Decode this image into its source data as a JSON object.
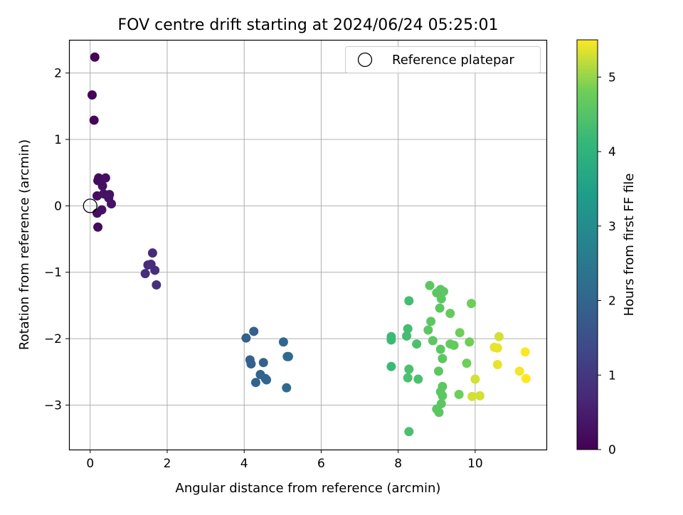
{
  "chart_data": {
    "type": "scatter",
    "title": "FOV centre drift starting at 2024/06/24 05:25:01",
    "xlabel": "Angular distance from reference (arcmin)",
    "ylabel": "Rotation from reference (arcmin)",
    "xlim": [
      -0.55,
      11.85
    ],
    "ylim": [
      -3.67,
      2.5
    ],
    "xticks": [
      0,
      2,
      4,
      6,
      8,
      10
    ],
    "yticks": [
      -3,
      -2,
      -1,
      0,
      1,
      2
    ],
    "grid": true,
    "legend": {
      "placement": "top-right",
      "entries": [
        "Reference platepar"
      ]
    },
    "reference_point": {
      "x": 0,
      "y": 0
    },
    "colorbar": {
      "label": "Hours from first FF file",
      "min": 0,
      "max": 5.5,
      "ticks": [
        0,
        1,
        2,
        3,
        4,
        5
      ],
      "colormap": "viridis"
    },
    "series": [
      {
        "points": [
          {
            "x": 0.12,
            "y": 2.24,
            "c": 0.05
          },
          {
            "x": 0.05,
            "y": 1.67,
            "c": 0.05
          },
          {
            "x": 0.1,
            "y": 1.29,
            "c": 0.08
          },
          {
            "x": 0.22,
            "y": 0.42,
            "c": 0.2
          },
          {
            "x": 0.2,
            "y": 0.38,
            "c": 0.2
          },
          {
            "x": 0.4,
            "y": 0.42,
            "c": 0.25
          },
          {
            "x": 0.32,
            "y": 0.3,
            "c": 0.25
          },
          {
            "x": 0.18,
            "y": 0.15,
            "c": 0.2
          },
          {
            "x": 0.35,
            "y": 0.18,
            "c": 0.3
          },
          {
            "x": 0.5,
            "y": 0.17,
            "c": 0.3
          },
          {
            "x": 0.48,
            "y": 0.12,
            "c": 0.3
          },
          {
            "x": 0.55,
            "y": 0.03,
            "c": 0.3
          },
          {
            "x": 0.3,
            "y": -0.06,
            "c": 0.3
          },
          {
            "x": 0.18,
            "y": -0.11,
            "c": 0.25
          },
          {
            "x": 0.2,
            "y": -0.32,
            "c": 0.2
          },
          {
            "x": 1.62,
            "y": -0.71,
            "c": 0.75
          },
          {
            "x": 1.5,
            "y": -0.89,
            "c": 0.75
          },
          {
            "x": 1.58,
            "y": -0.88,
            "c": 0.8
          },
          {
            "x": 1.68,
            "y": -0.97,
            "c": 0.8
          },
          {
            "x": 1.43,
            "y": -1.02,
            "c": 0.8
          },
          {
            "x": 1.72,
            "y": -1.19,
            "c": 0.85
          },
          {
            "x": 4.05,
            "y": -1.99,
            "c": 1.85
          },
          {
            "x": 4.25,
            "y": -1.89,
            "c": 1.9
          },
          {
            "x": 4.15,
            "y": -2.32,
            "c": 1.9
          },
          {
            "x": 4.18,
            "y": -2.38,
            "c": 1.9
          },
          {
            "x": 4.5,
            "y": -2.36,
            "c": 1.95
          },
          {
            "x": 4.42,
            "y": -2.54,
            "c": 1.95
          },
          {
            "x": 4.3,
            "y": -2.66,
            "c": 1.95
          },
          {
            "x": 4.55,
            "y": -2.6,
            "c": 2.0
          },
          {
            "x": 4.58,
            "y": -2.62,
            "c": 2.0
          },
          {
            "x": 5.02,
            "y": -2.05,
            "c": 2.05
          },
          {
            "x": 5.15,
            "y": -2.27,
            "c": 2.1
          },
          {
            "x": 5.12,
            "y": -2.27,
            "c": 2.1
          },
          {
            "x": 5.1,
            "y": -2.74,
            "c": 2.1
          },
          {
            "x": 7.82,
            "y": -1.97,
            "c": 4.2
          },
          {
            "x": 7.82,
            "y": -2.02,
            "c": 4.2
          },
          {
            "x": 7.82,
            "y": -2.42,
            "c": 4.2
          },
          {
            "x": 8.22,
            "y": -1.96,
            "c": 4.3
          },
          {
            "x": 8.28,
            "y": -1.43,
            "c": 4.3
          },
          {
            "x": 8.25,
            "y": -1.85,
            "c": 4.3
          },
          {
            "x": 8.48,
            "y": -2.08,
            "c": 4.4
          },
          {
            "x": 8.28,
            "y": -2.46,
            "c": 4.4
          },
          {
            "x": 8.25,
            "y": -2.59,
            "c": 4.4
          },
          {
            "x": 8.52,
            "y": -2.61,
            "c": 4.4
          },
          {
            "x": 8.28,
            "y": -3.4,
            "c": 4.4
          },
          {
            "x": 8.82,
            "y": -1.2,
            "c": 4.6
          },
          {
            "x": 9.0,
            "y": -1.31,
            "c": 4.6
          },
          {
            "x": 9.1,
            "y": -1.26,
            "c": 4.6
          },
          {
            "x": 9.18,
            "y": -1.29,
            "c": 4.6
          },
          {
            "x": 9.12,
            "y": -1.4,
            "c": 4.6
          },
          {
            "x": 9.08,
            "y": -1.54,
            "c": 4.6
          },
          {
            "x": 9.35,
            "y": -1.62,
            "c": 4.7
          },
          {
            "x": 8.85,
            "y": -1.74,
            "c": 4.6
          },
          {
            "x": 8.78,
            "y": -1.87,
            "c": 4.6
          },
          {
            "x": 8.9,
            "y": -2.03,
            "c": 4.6
          },
          {
            "x": 9.1,
            "y": -2.16,
            "c": 4.6
          },
          {
            "x": 9.15,
            "y": -2.3,
            "c": 4.6
          },
          {
            "x": 9.35,
            "y": -2.08,
            "c": 4.7
          },
          {
            "x": 9.45,
            "y": -2.1,
            "c": 4.7
          },
          {
            "x": 9.05,
            "y": -2.49,
            "c": 4.6
          },
          {
            "x": 9.6,
            "y": -1.91,
            "c": 4.8
          },
          {
            "x": 9.78,
            "y": -2.37,
            "c": 4.8
          },
          {
            "x": 9.85,
            "y": -2.05,
            "c": 4.8
          },
          {
            "x": 9.9,
            "y": -1.47,
            "c": 4.8
          },
          {
            "x": 9.15,
            "y": -2.72,
            "c": 4.6
          },
          {
            "x": 9.1,
            "y": -2.8,
            "c": 4.6
          },
          {
            "x": 9.15,
            "y": -2.86,
            "c": 4.6
          },
          {
            "x": 9.12,
            "y": -2.98,
            "c": 4.6
          },
          {
            "x": 9.0,
            "y": -3.06,
            "c": 4.6
          },
          {
            "x": 9.06,
            "y": -3.11,
            "c": 4.6
          },
          {
            "x": 9.58,
            "y": -2.84,
            "c": 4.8
          },
          {
            "x": 9.92,
            "y": -2.87,
            "c": 5.3
          },
          {
            "x": 10.12,
            "y": -2.86,
            "c": 5.3
          },
          {
            "x": 10.0,
            "y": -2.61,
            "c": 5.3
          },
          {
            "x": 10.58,
            "y": -2.39,
            "c": 5.4
          },
          {
            "x": 10.5,
            "y": -2.13,
            "c": 5.4
          },
          {
            "x": 10.58,
            "y": -2.14,
            "c": 5.4
          },
          {
            "x": 10.62,
            "y": -1.97,
            "c": 5.3
          },
          {
            "x": 11.15,
            "y": -2.49,
            "c": 5.45
          },
          {
            "x": 11.3,
            "y": -2.2,
            "c": 5.5
          },
          {
            "x": 11.32,
            "y": -2.6,
            "c": 5.5
          }
        ]
      }
    ]
  }
}
